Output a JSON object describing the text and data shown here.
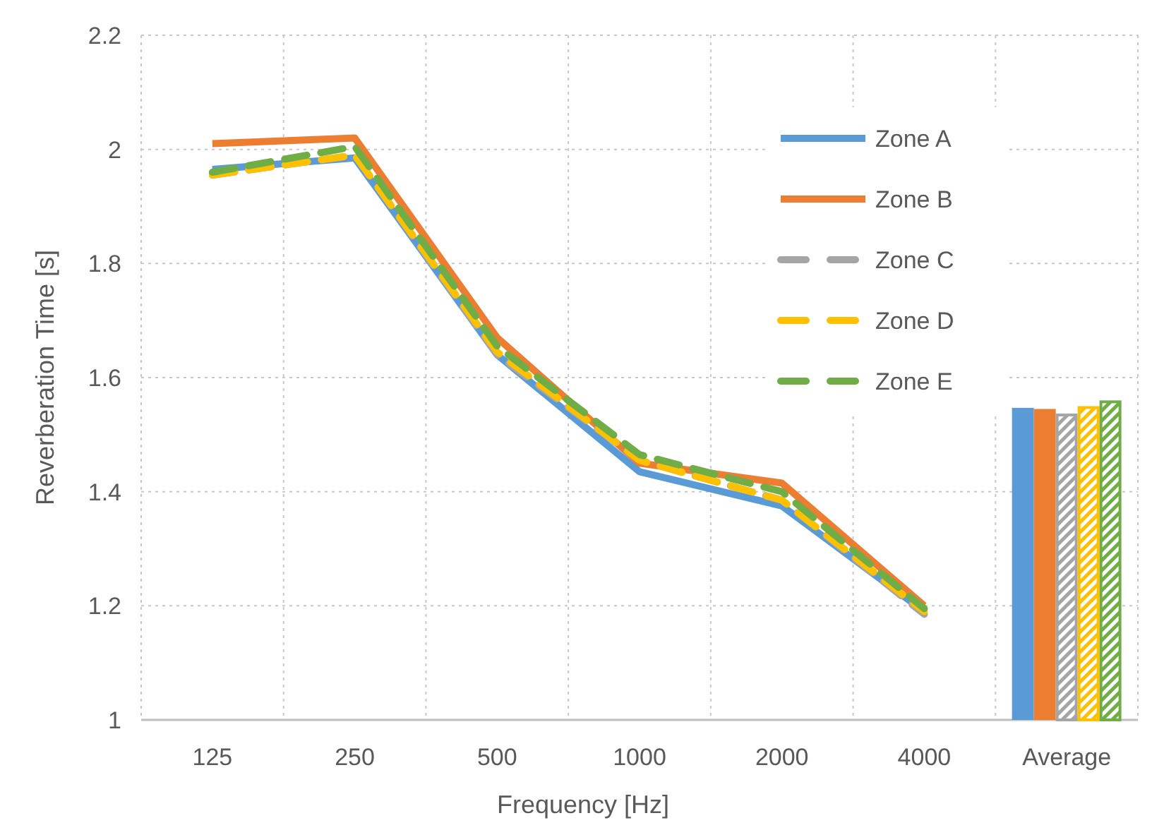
{
  "chart_data": {
    "type": "line",
    "xlabel": "Frequency [Hz]",
    "ylabel": "Reverberation Time [s]",
    "categories": [
      "125",
      "250",
      "500",
      "1000",
      "2000",
      "4000",
      "Average"
    ],
    "ylim": [
      1,
      2.2
    ],
    "yticks": [
      1,
      1.2,
      1.4,
      1.6,
      1.8,
      2,
      2.2
    ],
    "grid": true,
    "legend": "top right",
    "marker": "none",
    "series": [
      {
        "name": "Zone A",
        "color": "#5b9bd5",
        "line_style": "solid",
        "values": [
          1.965,
          1.985,
          1.64,
          1.435,
          1.375,
          1.19,
          null
        ]
      },
      {
        "name": "Zone B",
        "color": "#ed7d31",
        "line_style": "solid",
        "values": [
          2.01,
          2.02,
          1.67,
          1.45,
          1.415,
          1.2,
          null
        ]
      },
      {
        "name": "Zone C",
        "color": "#a5a5a5",
        "line_style": "dashed",
        "values": [
          1.955,
          1.99,
          1.64,
          1.455,
          1.385,
          1.185,
          null
        ]
      },
      {
        "name": "Zone D",
        "color": "#ffc000",
        "line_style": "dashed",
        "values": [
          1.955,
          1.99,
          1.645,
          1.455,
          1.385,
          1.19,
          null
        ]
      },
      {
        "name": "Zone E",
        "color": "#70ad47",
        "line_style": "dashed",
        "values": [
          1.96,
          2.005,
          1.655,
          1.465,
          1.4,
          1.195,
          null
        ]
      },
      {
        "type": "bar",
        "color": "#5b9bd5",
        "line_style": "solid",
        "values": [
          null,
          null,
          null,
          null,
          null,
          null,
          1.547
        ]
      },
      {
        "type": "bar",
        "color": "#ed7d31",
        "line_style": "solid",
        "values": [
          null,
          null,
          null,
          null,
          null,
          null,
          1.545
        ]
      },
      {
        "type": "bar",
        "color": "#a5a5a5",
        "line_style": "dashed",
        "values": [
          null,
          null,
          null,
          null,
          null,
          null,
          1.537
        ]
      },
      {
        "type": "bar",
        "color": "#ffc000",
        "line_style": "dashed",
        "values": [
          null,
          null,
          null,
          null,
          null,
          null,
          1.55
        ]
      },
      {
        "type": "bar",
        "color": "#70ad47",
        "line_style": "dashed",
        "values": [
          null,
          null,
          null,
          null,
          null,
          null,
          1.56
        ]
      }
    ]
  }
}
